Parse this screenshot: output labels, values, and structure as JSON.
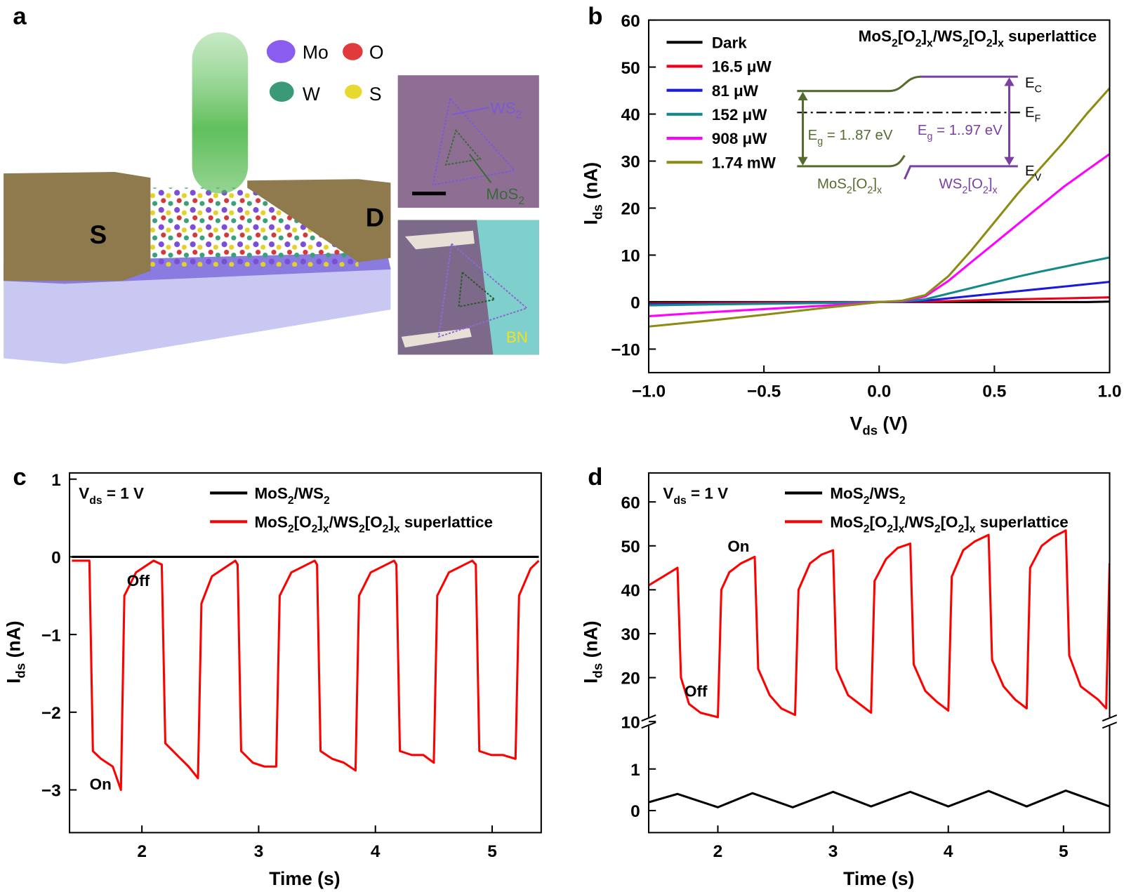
{
  "illustration": {
    "panel_label": "a",
    "legend": [
      "Mo",
      "O",
      "W",
      "S"
    ],
    "electrodes": [
      "S",
      "D"
    ],
    "image_labels": [
      [
        "WS",
        "2"
      ],
      [
        "MoS",
        "2"
      ],
      "BN"
    ]
  },
  "chart_data": [
    {
      "type": "line",
      "panel_label": "b",
      "x_label": [
        "V",
        "ds",
        " (V)"
      ],
      "y_label": [
        "I",
        "ds",
        " (nA)"
      ],
      "xlim": [
        -1,
        1
      ],
      "xticks": [
        {
          "value": -1,
          "label": "−1.0"
        },
        {
          "value": -0.5,
          "label": "−0.5"
        },
        {
          "value": 0,
          "label": "0.0"
        },
        0.5,
        {
          "value": 1,
          "label": "1.0"
        }
      ],
      "ylim": [
        -15,
        60
      ],
      "yticks": [
        {
          "value": -10,
          "label": "−10"
        },
        0,
        10,
        20,
        30,
        40,
        50,
        60
      ],
      "x": [
        -1,
        -0.75,
        -0.5,
        -0.25,
        0,
        0.1,
        0.2,
        0.3,
        0.4,
        0.5,
        0.6,
        0.7,
        0.8,
        0.9,
        1
      ],
      "series": [
        {
          "name": "Dark",
          "color": "#000000",
          "values": [
            0,
            0,
            0,
            0,
            0,
            0,
            0,
            0,
            0,
            0,
            0,
            0,
            0,
            0,
            0.1
          ]
        },
        {
          "name": "16.5 μW",
          "color": "#e8001c",
          "values": [
            -0.3,
            -0.2,
            -0.1,
            -0.05,
            0,
            0,
            0.05,
            0.2,
            0.35,
            0.5,
            0.6,
            0.7,
            0.8,
            0.9,
            1.0
          ]
        },
        {
          "name": "81 μW",
          "color": "#1a1adc",
          "values": [
            -0.5,
            -0.4,
            -0.3,
            -0.15,
            0,
            0.05,
            0.3,
            0.8,
            1.3,
            1.8,
            2.3,
            2.8,
            3.3,
            3.8,
            4.3
          ]
        },
        {
          "name": "152 μW",
          "color": "#138a8a",
          "values": [
            -0.7,
            -0.5,
            -0.35,
            -0.2,
            0,
            0.1,
            0.6,
            1.8,
            3.0,
            4.2,
            5.4,
            6.5,
            7.5,
            8.5,
            9.5
          ]
        },
        {
          "name": "908 μW",
          "color": "#ff00ff",
          "values": [
            -3,
            -2.2,
            -1.5,
            -0.8,
            0,
            0.2,
            1.2,
            4.5,
            8.5,
            12.5,
            16.5,
            20.5,
            24.5,
            28,
            31.5
          ]
        },
        {
          "name": "1.74 mW",
          "color": "#8c8c14",
          "values": [
            -5.2,
            -4,
            -2.7,
            -1.3,
            0,
            0.3,
            1.5,
            5.5,
            11,
            17,
            23,
            28.5,
            34,
            40,
            45.5
          ]
        }
      ],
      "annotations": [
        [
          "MoS",
          "2",
          "[O",
          "2",
          "]",
          "x",
          "/WS",
          "2",
          "[O",
          "2",
          "]",
          "x",
          " superlattice"
        ],
        [
          "E",
          "C"
        ],
        [
          "E",
          "F"
        ],
        [
          "E",
          "V"
        ],
        [
          "E",
          "g",
          " = 1..87 eV"
        ],
        [
          "E",
          "g",
          " = 1..97 eV"
        ],
        [
          "MoS",
          "2",
          "[O",
          "2",
          "]",
          "x"
        ],
        [
          "WS",
          "2",
          "[O",
          "2",
          "]",
          "x"
        ]
      ]
    },
    {
      "type": "line",
      "panel_label": "c",
      "x_label": "Time (s)",
      "y_label": [
        "I",
        "ds",
        " (nA)"
      ],
      "xlim": [
        1.38,
        5.42
      ],
      "xticks": [
        2,
        3,
        4,
        5
      ],
      "ylim": [
        -3.55,
        1.08
      ],
      "yticks": [
        {
          "value": -3,
          "label": "−3"
        },
        {
          "value": -2,
          "label": "−2"
        },
        {
          "value": -1,
          "label": "−1"
        },
        0,
        1
      ],
      "series": [
        {
          "name": [
            "MoS",
            "2",
            "/WS",
            "2"
          ],
          "color": "#000000",
          "x": [
            1.4,
            2,
            3,
            4,
            5,
            5.4
          ],
          "values": [
            0,
            0,
            0,
            0,
            0,
            0
          ]
        },
        {
          "name": [
            "MoS",
            "2",
            "[O",
            "2",
            "]",
            "x",
            "/WS",
            "2",
            "[O",
            "2",
            "]",
            "x",
            " superlattice"
          ],
          "color": "#ff0000",
          "x": [
            1.4,
            1.55,
            1.58,
            1.65,
            1.75,
            1.82,
            1.85,
            1.95,
            2.1,
            2.17,
            2.2,
            2.3,
            2.4,
            2.48,
            2.51,
            2.6,
            2.8,
            2.82,
            2.85,
            2.95,
            3.05,
            3.15,
            3.18,
            3.28,
            3.48,
            3.5,
            3.53,
            3.63,
            3.73,
            3.83,
            3.86,
            3.96,
            4.16,
            4.18,
            4.21,
            4.31,
            4.41,
            4.5,
            4.53,
            4.63,
            4.83,
            4.86,
            4.89,
            4.99,
            5.09,
            5.2,
            5.23,
            5.33,
            5.4
          ],
          "values": [
            -0.05,
            -0.05,
            -2.5,
            -2.6,
            -2.7,
            -3.0,
            -0.5,
            -0.2,
            -0.05,
            -0.1,
            -2.4,
            -2.55,
            -2.7,
            -2.85,
            -0.6,
            -0.25,
            -0.05,
            -0.1,
            -2.5,
            -2.65,
            -2.7,
            -2.7,
            -0.5,
            -0.2,
            -0.05,
            -0.1,
            -2.5,
            -2.6,
            -2.65,
            -2.75,
            -0.5,
            -0.2,
            -0.05,
            -0.1,
            -2.5,
            -2.55,
            -2.55,
            -2.65,
            -0.5,
            -0.2,
            -0.05,
            -0.1,
            -2.5,
            -2.55,
            -2.55,
            -2.6,
            -0.5,
            -0.15,
            -0.05
          ]
        }
      ],
      "annotations": [
        [
          "V",
          "ds",
          " = 1 V"
        ],
        "On",
        "Off"
      ]
    },
    {
      "type": "line",
      "panel_label": "d",
      "x_label": "Time (s)",
      "y_label": [
        "I",
        "ds",
        " (nA)"
      ],
      "xlim": [
        1.4,
        5.4
      ],
      "xticks": [
        2,
        3,
        4,
        5
      ],
      "ylim": [
        -0.53,
        2.14
      ],
      "yticks": [
        0,
        1
      ],
      "y2lim": [
        10,
        66.6
      ],
      "y2ticks": [
        10,
        20,
        30,
        40,
        50,
        60
      ],
      "series": [
        {
          "name": [
            "MoS",
            "2",
            "/WS",
            "2"
          ],
          "color": "#000000",
          "x": [
            1.4,
            1.65,
            2.0,
            2.3,
            2.65,
            3.0,
            3.33,
            3.67,
            4.0,
            4.35,
            4.68,
            5.02,
            5.4
          ],
          "values": [
            0.2,
            0.4,
            0.08,
            0.42,
            0.08,
            0.45,
            0.1,
            0.45,
            0.1,
            0.47,
            0.1,
            0.48,
            0.1
          ]
        },
        {
          "name": [
            "MoS",
            "2",
            "[O",
            "2",
            "]",
            "x",
            "/WS",
            "2",
            "[O",
            "2",
            "]",
            "x",
            " superlattice"
          ],
          "color": "#ff0000",
          "axis": "y2",
          "x": [
            1.4,
            1.65,
            1.68,
            1.75,
            1.85,
            2.0,
            2.03,
            2.1,
            2.2,
            2.32,
            2.35,
            2.45,
            2.55,
            2.67,
            2.7,
            2.8,
            2.9,
            3.0,
            3.03,
            3.13,
            3.23,
            3.33,
            3.36,
            3.46,
            3.56,
            3.67,
            3.7,
            3.8,
            3.9,
            4.0,
            4.03,
            4.13,
            4.23,
            4.35,
            4.38,
            4.48,
            4.58,
            4.68,
            4.71,
            4.81,
            4.91,
            5.02,
            5.05,
            5.15,
            5.3,
            5.37,
            5.4
          ],
          "values": [
            41,
            45,
            20,
            14,
            12,
            11,
            40,
            44,
            46,
            47.5,
            22,
            16,
            13,
            11.5,
            40,
            46,
            48,
            49,
            22,
            16,
            14,
            12,
            42,
            47,
            49.5,
            50.5,
            23,
            17,
            14.5,
            12.5,
            43,
            49,
            51,
            52.5,
            24,
            18,
            15,
            13,
            45,
            50,
            52,
            53.5,
            25,
            18,
            15,
            13,
            46
          ]
        }
      ],
      "annotations": [
        [
          "V",
          "ds",
          " = 1 V"
        ],
        "On",
        "Off"
      ]
    }
  ]
}
